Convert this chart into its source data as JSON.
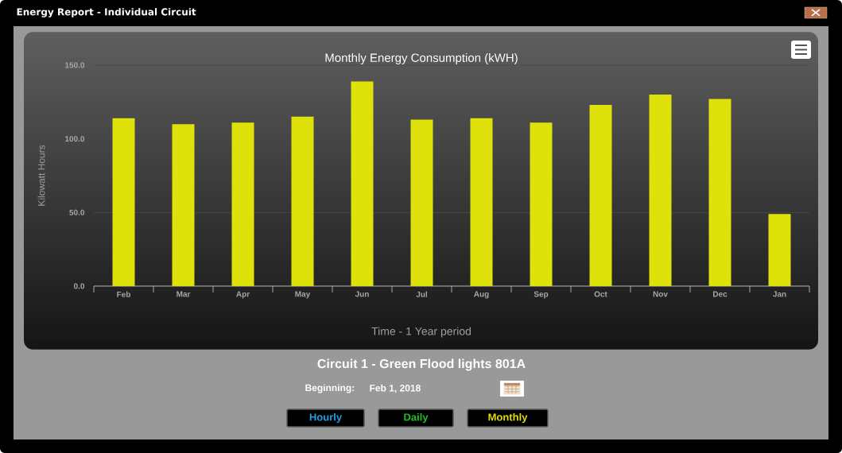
{
  "chart_data": {
    "type": "bar",
    "title": "Monthly Energy Consumption (kWH)",
    "xlabel": "Time - 1 Year period",
    "ylabel": "Kilowatt Hours",
    "categories": [
      "Feb",
      "Mar",
      "Apr",
      "May",
      "Jun",
      "Jul",
      "Aug",
      "Sep",
      "Oct",
      "Nov",
      "Dec",
      "Jan"
    ],
    "values": [
      114,
      110,
      111,
      115,
      139,
      113,
      114,
      111,
      123,
      130,
      127,
      49
    ],
    "color": "#dfe10b",
    "ylim": [
      0,
      150
    ],
    "yticks": [
      {
        "value": 0,
        "label": "0.0"
      },
      {
        "value": 50,
        "label": "50.0"
      },
      {
        "value": 100,
        "label": "100.0"
      },
      {
        "value": 150,
        "label": "150.0"
      }
    ],
    "grid": "y",
    "annotations": [
      "Energy Report - Individual Circuit",
      "Circuit 1 - Green Flood lights 801A",
      "Beginning:",
      "Feb 1, 2018",
      "Hourly",
      "Daily",
      "Monthly"
    ]
  }
}
